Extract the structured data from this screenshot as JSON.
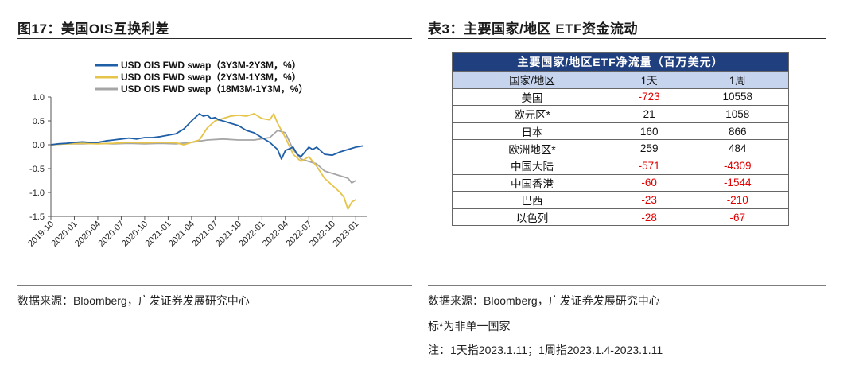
{
  "left_panel": {
    "title": "图17：美国OIS互换利差",
    "source": "数据来源：Bloomberg，广发证券发展研究中心"
  },
  "right_panel": {
    "title": "表3：主要国家/地区 ETF资金流动",
    "source": "数据来源：Bloomberg，广发证券发展研究中心",
    "note1": "标*为非单一国家",
    "note2": "注：1天指2023.1.11；1周指2023.1.4-2023.1.11"
  },
  "colors": {
    "series1": "#1f5fa8",
    "series2": "#e6c44a",
    "series3": "#a6a6a6",
    "table_header": "#1f3f7f",
    "table_subheader": "#c7d4ee",
    "negative": "#e00000"
  },
  "chart_data": {
    "type": "line",
    "title": "",
    "xlabel": "",
    "ylabel": "",
    "ylim": [
      -1.5,
      1.0
    ],
    "y_ticks": [
      1.0,
      0.5,
      0.0,
      -0.5,
      -1.0,
      -1.5
    ],
    "y_tick_labels": [
      "1.0",
      "0.5",
      "0.0",
      "-0.5",
      "-1.0",
      "-1.5"
    ],
    "x_tick_labels": [
      "2019-10",
      "2020-01",
      "2020-04",
      "2020-07",
      "2020-10",
      "2021-01",
      "2021-04",
      "2021-07",
      "2021-10",
      "2022-01",
      "2022-04",
      "2022-07",
      "2022-10",
      "2023-01"
    ],
    "x_range": [
      0,
      40.5
    ],
    "legend": "top-left",
    "series": [
      {
        "name": "USD OIS FWD swap（3Y3M-2Y3M，%）",
        "color": "#1f5fa8",
        "x": [
          0,
          1,
          2,
          3,
          4,
          5,
          6,
          7,
          8,
          9,
          10,
          11,
          12,
          13,
          14,
          15,
          16,
          17,
          18,
          19,
          19.5,
          20,
          20.5,
          21,
          21.5,
          22,
          23,
          24,
          25,
          26,
          27,
          28,
          29,
          29.5,
          30,
          31,
          31.5,
          32,
          32.5,
          33,
          33.5,
          34,
          35,
          36,
          37,
          38,
          39,
          40
        ],
        "y": [
          0,
          0.02,
          0.03,
          0.05,
          0.06,
          0.05,
          0.05,
          0.08,
          0.1,
          0.12,
          0.14,
          0.12,
          0.15,
          0.15,
          0.17,
          0.2,
          0.23,
          0.33,
          0.5,
          0.65,
          0.6,
          0.62,
          0.55,
          0.57,
          0.52,
          0.5,
          0.45,
          0.4,
          0.3,
          0.25,
          0.15,
          0.05,
          -0.1,
          -0.3,
          -0.12,
          -0.05,
          -0.2,
          -0.25,
          -0.15,
          -0.05,
          -0.1,
          -0.05,
          -0.2,
          -0.22,
          -0.15,
          -0.1,
          -0.05,
          -0.02
        ]
      },
      {
        "name": "USD OIS FWD swap（2Y3M-1Y3M，%）",
        "color": "#e6c44a",
        "x": [
          0,
          2,
          4,
          6,
          8,
          10,
          12,
          14,
          16,
          17,
          18,
          19,
          20,
          21,
          22,
          23,
          24,
          25,
          26,
          27,
          28,
          28.5,
          29,
          30,
          31,
          32,
          33,
          34,
          35,
          36,
          37,
          37.5,
          38,
          38.5,
          39
        ],
        "y": [
          0,
          0.02,
          0.03,
          0.02,
          0.03,
          0.05,
          0.04,
          0.05,
          0.04,
          0,
          0.05,
          0.1,
          0.35,
          0.5,
          0.55,
          0.6,
          0.62,
          0.6,
          0.65,
          0.55,
          0.52,
          0.65,
          0.45,
          0.15,
          -0.2,
          -0.35,
          -0.25,
          -0.45,
          -0.7,
          -0.85,
          -1.0,
          -1.1,
          -1.35,
          -1.2,
          -1.15
        ]
      },
      {
        "name": "USD OIS FWD swap（18M3M-1Y3M，%）",
        "color": "#a6a6a6",
        "x": [
          0,
          2,
          4,
          6,
          8,
          10,
          12,
          14,
          16,
          18,
          20,
          22,
          24,
          26,
          28,
          29,
          30,
          31,
          32,
          33,
          34,
          35,
          36,
          37,
          38,
          38.5,
          39
        ],
        "y": [
          0,
          0.02,
          0.02,
          0.03,
          0.02,
          0.03,
          0.02,
          0.03,
          0.02,
          0.05,
          0.1,
          0.12,
          0.1,
          0.1,
          0.15,
          0.3,
          0.25,
          -0.1,
          -0.3,
          -0.35,
          -0.4,
          -0.55,
          -0.6,
          -0.65,
          -0.7,
          -0.8,
          -0.75
        ]
      }
    ]
  },
  "table": {
    "caption": "主要国家/地区ETF净流量（百万美元）",
    "headers": [
      "国家/地区",
      "1天",
      "1周"
    ],
    "rows": [
      {
        "region": "美国",
        "day": "-723",
        "week": "10558"
      },
      {
        "region": "欧元区*",
        "day": "21",
        "week": "1058"
      },
      {
        "region": "日本",
        "day": "160",
        "week": "866"
      },
      {
        "region": "欧洲地区*",
        "day": "259",
        "week": "484"
      },
      {
        "region": "中国大陆",
        "day": "-571",
        "week": "-4309"
      },
      {
        "region": "中国香港",
        "day": "-60",
        "week": "-1544"
      },
      {
        "region": "巴西",
        "day": "-23",
        "week": "-210"
      },
      {
        "region": "以色列",
        "day": "-28",
        "week": "-67"
      }
    ]
  }
}
